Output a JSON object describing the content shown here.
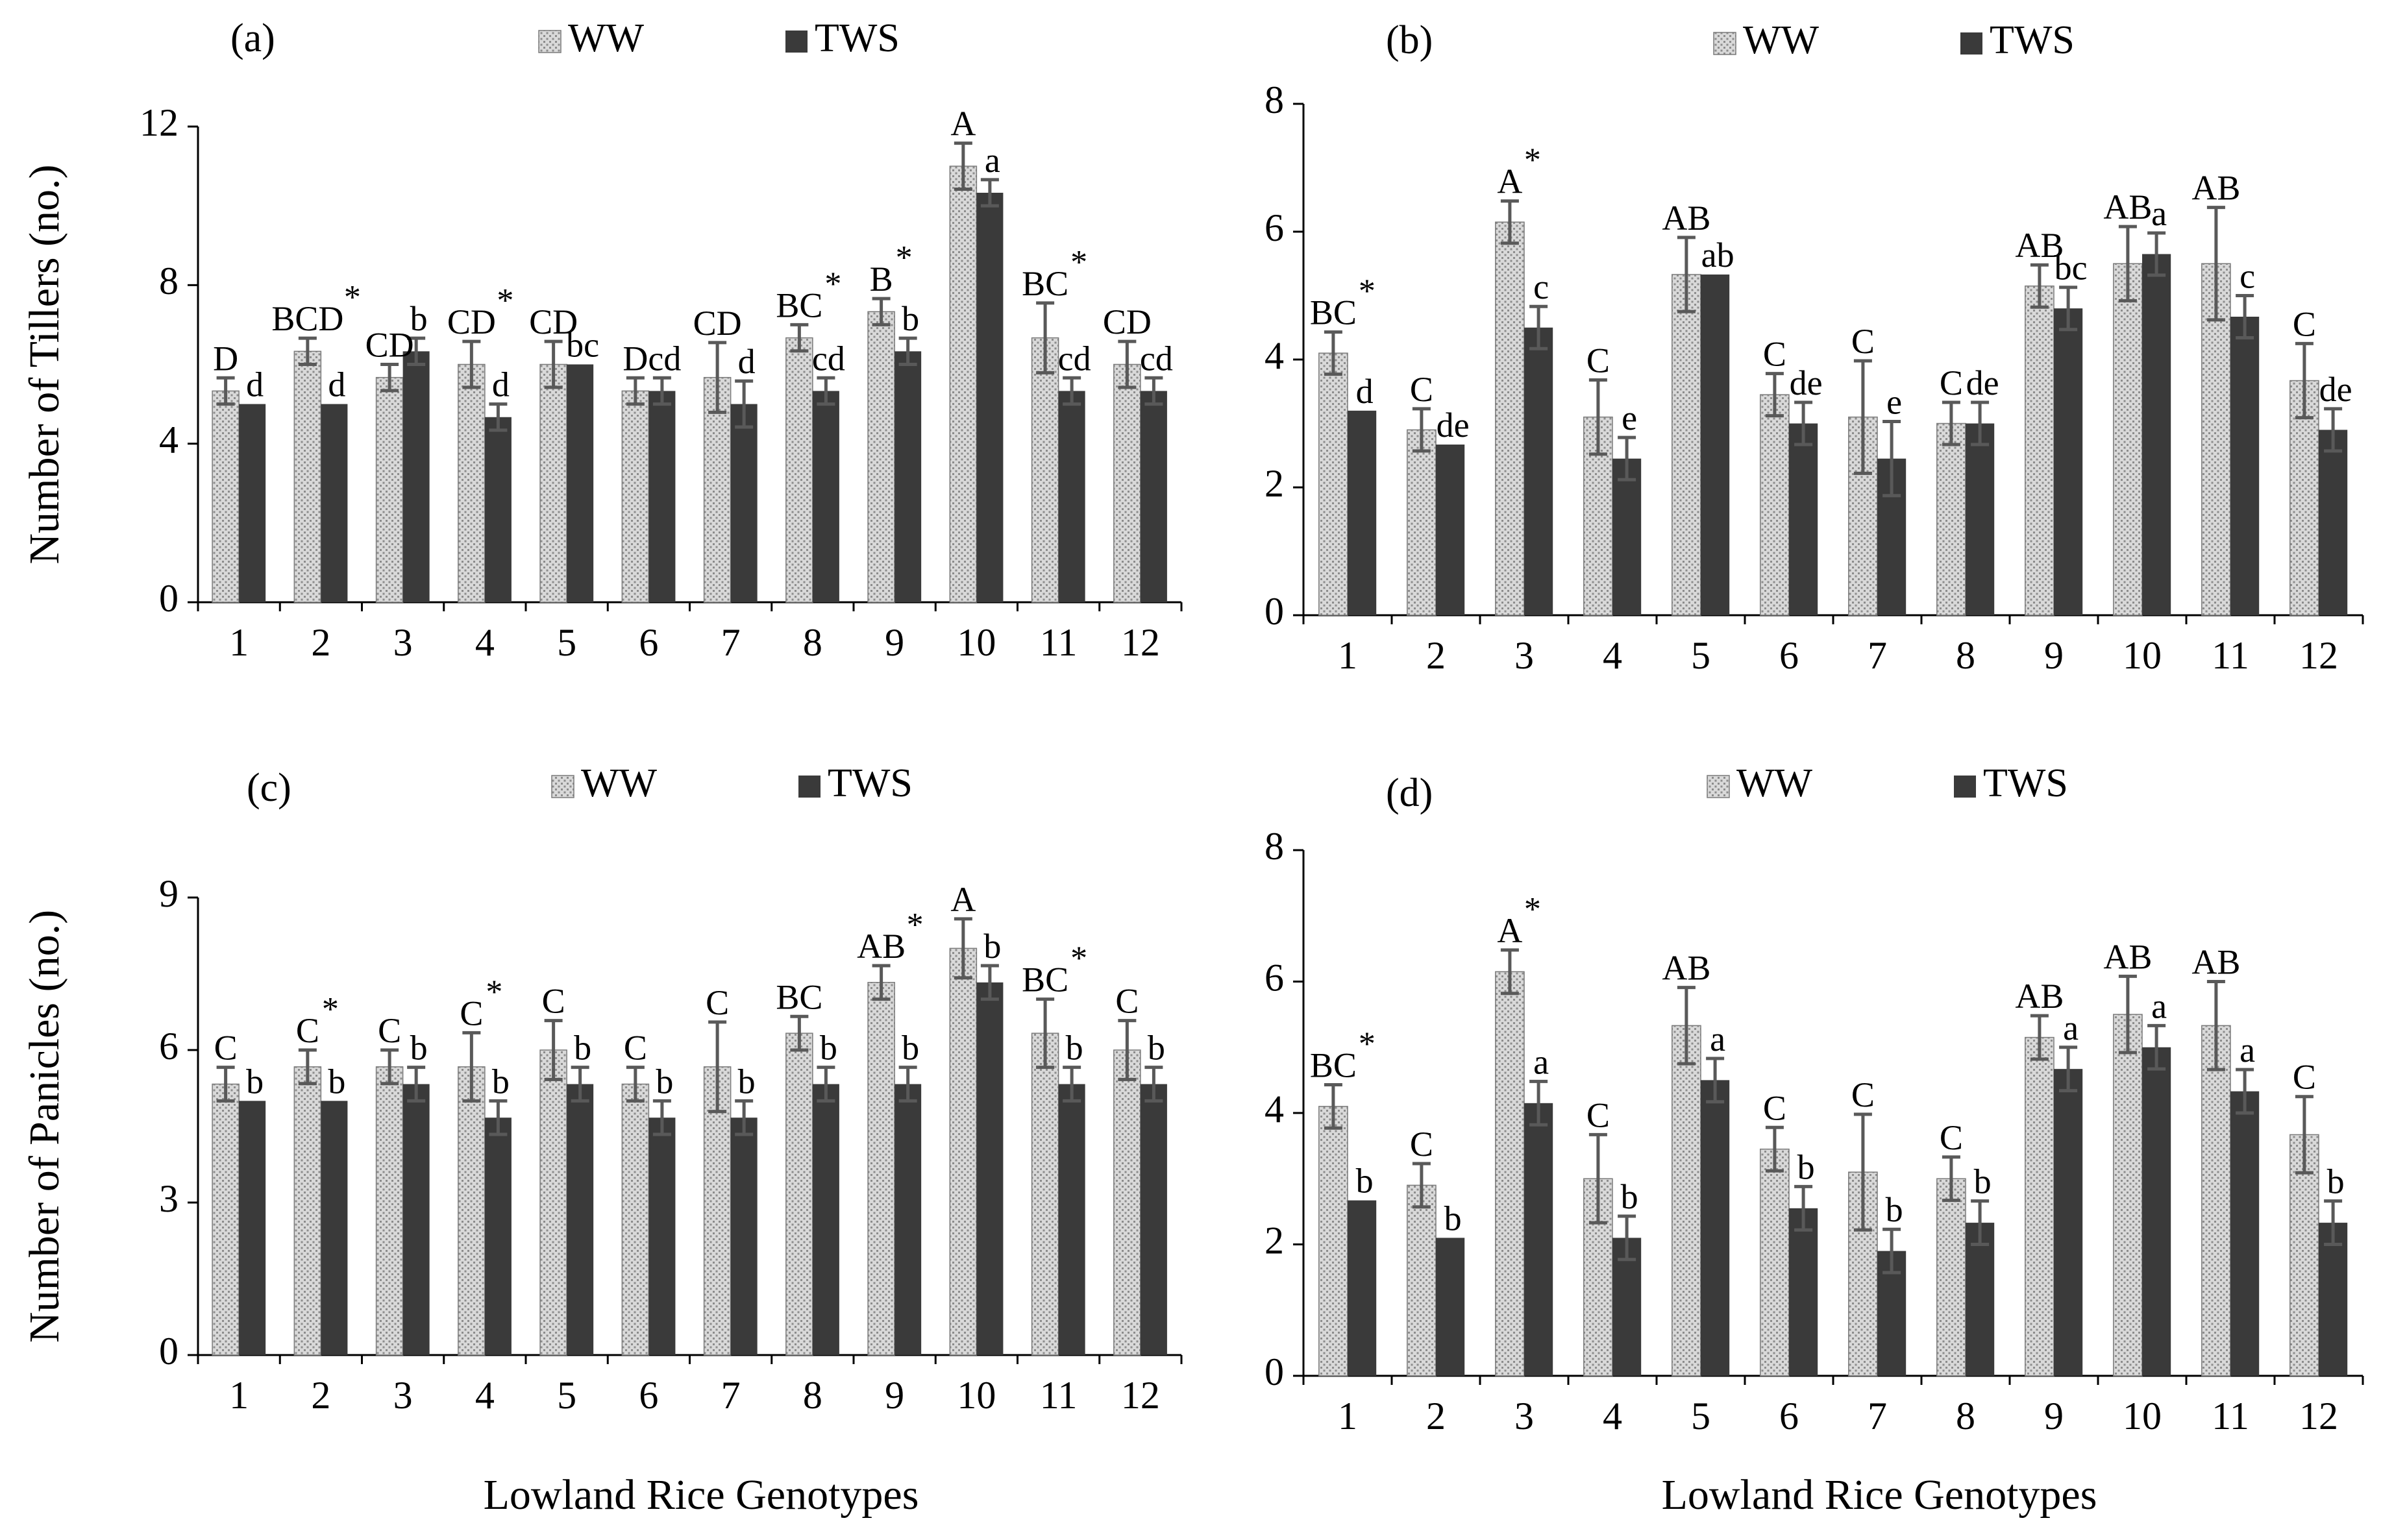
{
  "series_names": [
    "WW",
    "TWS"
  ],
  "colors": {
    "ww_fill": "#d9d9d9",
    "ww_dot": "#8c8c8c",
    "tws": "#3a3a3a",
    "axis": "#000000",
    "err": "#595959"
  },
  "xlabel": "Lowland Rice Genotypes",
  "chart_data": [
    {
      "panel": "(a)",
      "type": "bar",
      "ylabel": "Number of Tillers (no.)",
      "categories": [
        "1",
        "2",
        "3",
        "4",
        "5",
        "6",
        "7",
        "8",
        "9",
        "10",
        "11",
        "12"
      ],
      "ylim": [
        0,
        12
      ],
      "yticks": [
        0,
        4,
        8,
        12
      ],
      "legend": [
        "WW",
        "TWS"
      ],
      "series": [
        {
          "name": "WW",
          "values": [
            5.33,
            6.33,
            5.67,
            6.0,
            6.0,
            5.33,
            5.67,
            6.67,
            7.33,
            11.0,
            6.67,
            6.0
          ],
          "errors": [
            0.33,
            0.33,
            0.33,
            0.58,
            0.58,
            0.33,
            0.88,
            0.33,
            0.33,
            0.58,
            0.88,
            0.58
          ],
          "labels": [
            "D",
            "BCD",
            "CD",
            "CD",
            "CD",
            "D",
            "CD",
            "BC",
            "B",
            "A",
            "BC",
            "CD"
          ]
        },
        {
          "name": "TWS",
          "values": [
            5.0,
            5.0,
            6.33,
            4.67,
            6.0,
            5.33,
            5.0,
            5.33,
            6.33,
            10.33,
            5.33,
            5.33
          ],
          "errors": [
            0,
            0,
            0.33,
            0.33,
            0,
            0.33,
            0.58,
            0.33,
            0.33,
            0.33,
            0.33,
            0.33
          ],
          "labels": [
            "d",
            "d",
            "b",
            "d",
            "bc",
            "cd",
            "d",
            "cd",
            "b",
            "a",
            "cd",
            "cd"
          ]
        }
      ],
      "stars": [
        "",
        "*",
        "",
        "*",
        "",
        "",
        "",
        "*",
        "*",
        "",
        "*",
        ""
      ]
    },
    {
      "panel": "(b)",
      "type": "bar",
      "ylabel": "",
      "categories": [
        "1",
        "2",
        "3",
        "4",
        "5",
        "6",
        "7",
        "8",
        "9",
        "10",
        "11",
        "12"
      ],
      "ylim": [
        0,
        8
      ],
      "yticks": [
        0,
        2,
        4,
        6,
        8
      ],
      "legend": [
        "WW",
        "TWS"
      ],
      "series": [
        {
          "name": "WW",
          "values": [
            4.1,
            2.9,
            6.15,
            3.1,
            5.33,
            3.45,
            3.1,
            3.0,
            5.15,
            5.5,
            5.5,
            3.67
          ],
          "errors": [
            0.33,
            0.33,
            0.33,
            0.58,
            0.58,
            0.33,
            0.88,
            0.33,
            0.33,
            0.58,
            0.88,
            0.58
          ],
          "labels": [
            "BC",
            "C",
            "A",
            "C",
            "AB",
            "C",
            "C",
            "C",
            "AB",
            "AB",
            "AB",
            "C"
          ]
        },
        {
          "name": "TWS",
          "values": [
            3.2,
            2.67,
            4.5,
            2.45,
            5.33,
            3.0,
            2.45,
            3.0,
            4.8,
            5.65,
            4.67,
            2.9
          ],
          "errors": [
            0,
            0,
            0.33,
            0.33,
            0,
            0.33,
            0.58,
            0.33,
            0.33,
            0.33,
            0.33,
            0.33
          ],
          "labels": [
            "d",
            "de",
            "c",
            "e",
            "ab",
            "de",
            "e",
            "de",
            "bc",
            "a",
            "c",
            "de"
          ]
        }
      ],
      "stars": [
        "*",
        "",
        "*",
        "",
        "",
        "",
        "",
        "",
        "",
        "",
        "",
        ""
      ]
    },
    {
      "panel": "(c)",
      "type": "bar",
      "ylabel": "Number of Panicles (no.)",
      "categories": [
        "1",
        "2",
        "3",
        "4",
        "5",
        "6",
        "7",
        "8",
        "9",
        "10",
        "11",
        "12"
      ],
      "ylim": [
        0,
        9
      ],
      "yticks": [
        0,
        3,
        6,
        9
      ],
      "legend": [
        "WW",
        "TWS"
      ],
      "series": [
        {
          "name": "WW",
          "values": [
            5.33,
            5.67,
            5.67,
            5.67,
            6.0,
            5.33,
            5.67,
            6.33,
            7.33,
            8.0,
            6.33,
            6.0
          ],
          "errors": [
            0.33,
            0.33,
            0.33,
            0.67,
            0.58,
            0.33,
            0.88,
            0.33,
            0.33,
            0.58,
            0.67,
            0.58
          ],
          "labels": [
            "C",
            "C",
            "C",
            "C",
            "C",
            "C",
            "C",
            "BC",
            "AB",
            "A",
            "BC",
            "C"
          ]
        },
        {
          "name": "TWS",
          "values": [
            5.0,
            5.0,
            5.33,
            4.67,
            5.33,
            4.67,
            4.67,
            5.33,
            5.33,
            7.33,
            5.33,
            5.33
          ],
          "errors": [
            0,
            0,
            0.33,
            0.33,
            0.33,
            0.33,
            0.33,
            0.33,
            0.33,
            0.33,
            0.33,
            0.33
          ],
          "labels": [
            "b",
            "b",
            "b",
            "b",
            "b",
            "b",
            "b",
            "b",
            "b",
            "b",
            "b",
            "b"
          ]
        }
      ],
      "stars": [
        "",
        "*",
        "",
        "*",
        "",
        "",
        "",
        "",
        "*",
        "",
        "*",
        ""
      ]
    },
    {
      "panel": "(d)",
      "type": "bar",
      "ylabel": "",
      "categories": [
        "1",
        "2",
        "3",
        "4",
        "5",
        "6",
        "7",
        "8",
        "9",
        "10",
        "11",
        "12"
      ],
      "ylim": [
        0,
        8
      ],
      "yticks": [
        0,
        2,
        4,
        6,
        8
      ],
      "legend": [
        "WW",
        "TWS"
      ],
      "series": [
        {
          "name": "WW",
          "values": [
            4.1,
            2.9,
            6.15,
            3.0,
            5.33,
            3.45,
            3.1,
            3.0,
            5.15,
            5.5,
            5.33,
            3.67
          ],
          "errors": [
            0.33,
            0.33,
            0.33,
            0.67,
            0.58,
            0.33,
            0.88,
            0.33,
            0.33,
            0.58,
            0.67,
            0.58
          ],
          "labels": [
            "BC",
            "C",
            "A",
            "C",
            "AB",
            "C",
            "C",
            "C",
            "AB",
            "AB",
            "AB",
            "C"
          ]
        },
        {
          "name": "TWS",
          "values": [
            2.67,
            2.1,
            4.15,
            2.1,
            4.5,
            2.55,
            1.9,
            2.33,
            4.67,
            5.0,
            4.33,
            2.33
          ],
          "errors": [
            0,
            0,
            0.33,
            0.33,
            0.33,
            0.33,
            0.33,
            0.33,
            0.33,
            0.33,
            0.33,
            0.33
          ],
          "labels": [
            "b",
            "b",
            "a",
            "b",
            "a",
            "b",
            "b",
            "b",
            "a",
            "a",
            "a",
            "b"
          ]
        }
      ],
      "stars": [
        "*",
        "",
        "*",
        "",
        "",
        "",
        "",
        "",
        "",
        "",
        "",
        ""
      ]
    }
  ]
}
